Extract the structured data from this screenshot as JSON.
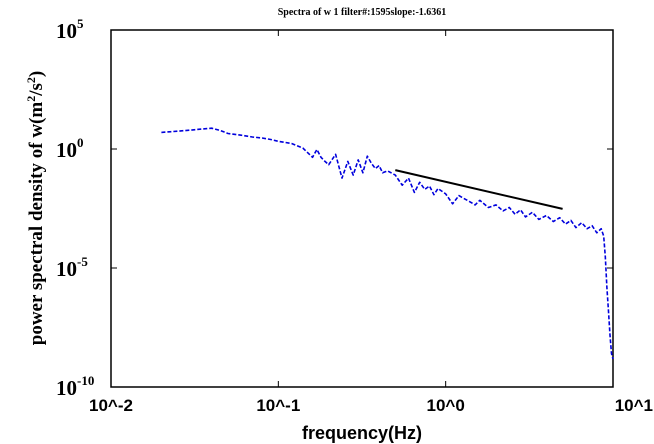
{
  "chart_data": {
    "type": "line",
    "title": "Spectra of w 1 filter#:1595slope:-1.6361",
    "xlabel": "frequency(Hz)",
    "ylabel": {
      "prefix": "power spectral density of w(m",
      "sup1": "2",
      "middle": "/s",
      "sup2": "2",
      "suffix": ")"
    },
    "x_scale": "log",
    "y_scale": "log",
    "xlim": [
      0.01,
      10
    ],
    "ylim": [
      1e-10,
      100000
    ],
    "grid": false,
    "x_ticks": [
      {
        "value": 0.01,
        "label": "10^-2"
      },
      {
        "value": 0.1,
        "label": "10^-1"
      },
      {
        "value": 1,
        "label": "10^0"
      },
      {
        "value": 10,
        "label": "10^1"
      }
    ],
    "y_ticks": [
      {
        "value": 1e-10,
        "base": "10",
        "exp": "-10"
      },
      {
        "value": 1e-05,
        "base": "10",
        "exp": "-5"
      },
      {
        "value": 1,
        "base": "10",
        "exp": "0"
      },
      {
        "value": 100000,
        "base": "10",
        "exp": "5"
      }
    ],
    "series": [
      {
        "style": "dashed",
        "color": "#0000dd",
        "x": [
          0.02,
          0.025,
          0.03,
          0.035,
          0.04,
          0.045,
          0.05,
          0.06,
          0.07,
          0.08,
          0.09,
          0.1,
          0.12,
          0.14,
          0.16,
          0.17,
          0.18,
          0.19,
          0.2,
          0.22,
          0.24,
          0.26,
          0.28,
          0.3,
          0.32,
          0.34,
          0.36,
          0.38,
          0.4,
          0.42,
          0.45,
          0.5,
          0.55,
          0.6,
          0.65,
          0.7,
          0.75,
          0.8,
          0.85,
          0.9,
          1.0,
          1.1,
          1.2,
          1.3,
          1.4,
          1.5,
          1.6,
          1.8,
          2.0,
          2.2,
          2.4,
          2.6,
          2.8,
          3.0,
          3.3,
          3.6,
          4.0,
          4.4,
          4.8,
          5.2,
          5.6,
          6.0,
          6.5,
          7.0,
          7.5,
          8.0,
          8.5,
          8.8,
          9.0,
          9.2,
          9.4,
          9.6,
          9.8,
          10.0
        ],
        "y": [
          5.0,
          5.6,
          6.2,
          6.9,
          7.5,
          6.0,
          4.5,
          3.8,
          3.2,
          2.9,
          2.5,
          2.1,
          1.7,
          1.1,
          0.45,
          0.95,
          0.45,
          0.3,
          0.22,
          0.6,
          0.06,
          0.3,
          0.08,
          0.35,
          0.1,
          0.5,
          0.25,
          0.15,
          0.2,
          0.1,
          0.12,
          0.08,
          0.03,
          0.06,
          0.015,
          0.04,
          0.02,
          0.028,
          0.012,
          0.022,
          0.013,
          0.005,
          0.011,
          0.008,
          0.006,
          0.0045,
          0.007,
          0.0035,
          0.0045,
          0.0025,
          0.0035,
          0.0018,
          0.0028,
          0.0014,
          0.0022,
          0.0011,
          0.0016,
          0.0009,
          0.0013,
          0.0007,
          0.001,
          0.0005,
          0.0008,
          0.00045,
          0.0006,
          0.0003,
          0.00045,
          0.00022,
          3e-05,
          1.5e-06,
          1.5e-07,
          1.5e-08,
          2.5e-09,
          1.5e-09
        ]
      },
      {
        "style": "solid",
        "color": "#000000",
        "x": [
          0.5,
          5.0
        ],
        "y": [
          0.13,
          0.00303
        ]
      }
    ]
  }
}
